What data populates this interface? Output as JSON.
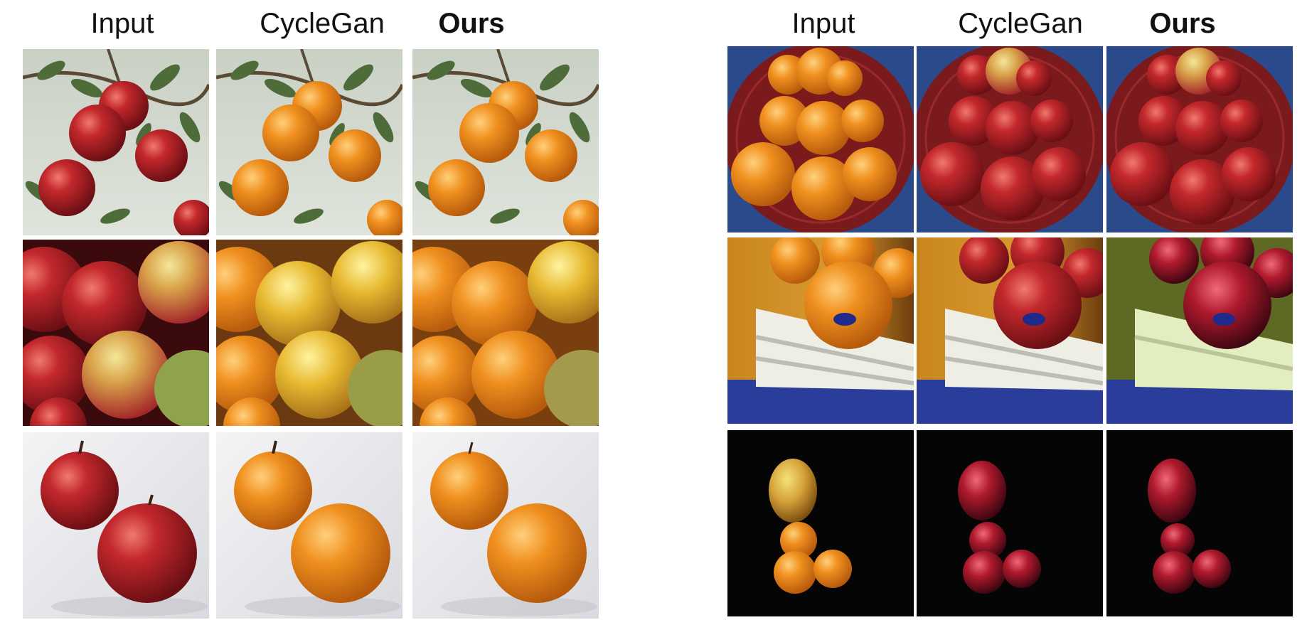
{
  "figure": {
    "left_panel": {
      "headers": [
        "Input",
        "CycleGan",
        "Ours"
      ],
      "rows": [
        {
          "scene": "apples-on-branch",
          "input": "apple",
          "output": "orange"
        },
        {
          "scene": "apples-with-droplets",
          "input": "apple",
          "output": "orange"
        },
        {
          "scene": "two-apples-on-white",
          "input": "apple",
          "output": "orange"
        }
      ]
    },
    "right_panel": {
      "headers": [
        "Input",
        "CycleGan",
        "Ours"
      ],
      "rows": [
        {
          "scene": "oranges-in-basket",
          "input": "orange",
          "output": "apple"
        },
        {
          "scene": "orange-on-crate",
          "input": "orange",
          "output": "apple"
        },
        {
          "scene": "oranges-on-black",
          "input": "orange",
          "output": "apple"
        }
      ]
    },
    "colors": {
      "apple_red": "#b8252a",
      "orange": "#ee8f24",
      "leaf_green": "#4e6b3a",
      "basket_red": "#7a1a1c",
      "crate_white": "#efeee4",
      "crate_blue": "#2b3d9a"
    }
  }
}
